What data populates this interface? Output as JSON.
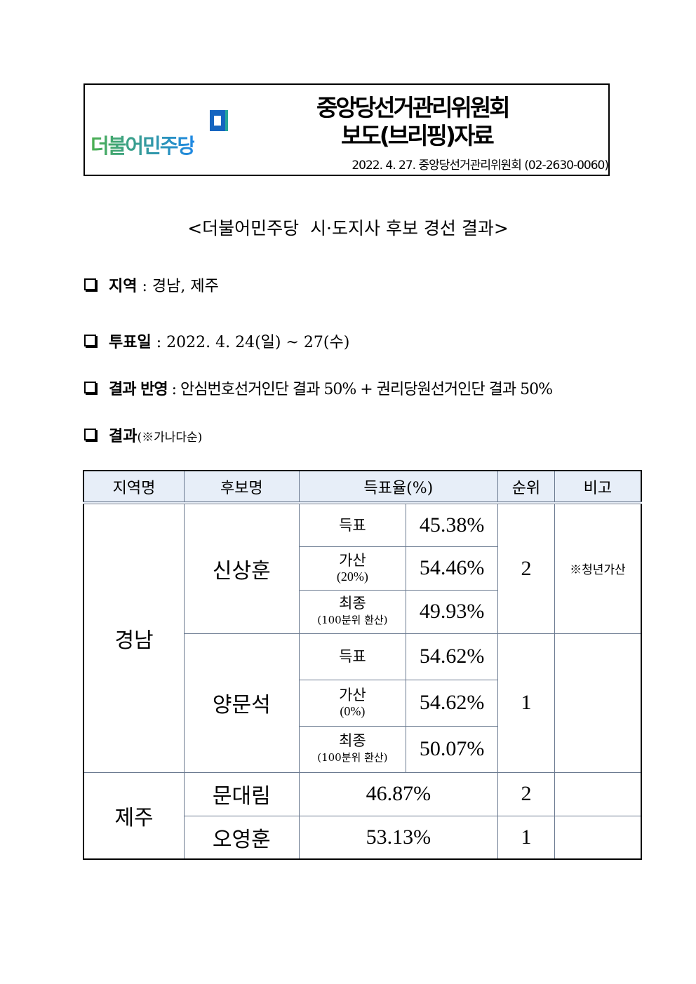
{
  "header": {
    "logo_text": "더불어민주당",
    "org": "중앙당선거관리위원회",
    "doc_type": "보도(브리핑)자료",
    "dateline": "2022. 4. 27. 중앙당선거관리위원회 (02-2630-0060)"
  },
  "title": "<더불어민주당  시·도지사 후보 경선 결과>",
  "items": [
    {
      "label": "지역",
      "value": " : 경남, 제주"
    },
    {
      "label": "투표일",
      "value": " : 2022. 4. 24(일) ~ 27(수)"
    },
    {
      "label": "결과 반영",
      "value": " : 안심번호선거인단 결과 50% + 권리당원선거인단 결과 50%"
    },
    {
      "label": "결과",
      "value": "(※가나다순)"
    }
  ],
  "table": {
    "headers": [
      "지역명",
      "후보명",
      "득표율(%)",
      "순위",
      "비고"
    ],
    "gyeongnam": {
      "region": "경남",
      "c1": {
        "name": "신상훈",
        "rows": [
          {
            "l": "득표",
            "s": "",
            "v": "45.38%"
          },
          {
            "l": "가산",
            "s": "(20%)",
            "v": "54.46%"
          },
          {
            "l": "최종",
            "s": "(100분위 환산)",
            "v": "49.93%"
          }
        ],
        "rank": "2",
        "note": "※청년가산"
      },
      "c2": {
        "name": "양문석",
        "rows": [
          {
            "l": "득표",
            "s": "",
            "v": "54.62%"
          },
          {
            "l": "가산",
            "s": "(0%)",
            "v": "54.62%"
          },
          {
            "l": "최종",
            "s": "(100분위 환산)",
            "v": "50.07%"
          }
        ],
        "rank": "1",
        "note": ""
      }
    },
    "jeju": {
      "region": "제주",
      "rows": [
        {
          "name": "문대림",
          "v": "46.87%",
          "rank": "2"
        },
        {
          "name": "오영훈",
          "v": "53.13%",
          "rank": "1"
        }
      ]
    }
  }
}
